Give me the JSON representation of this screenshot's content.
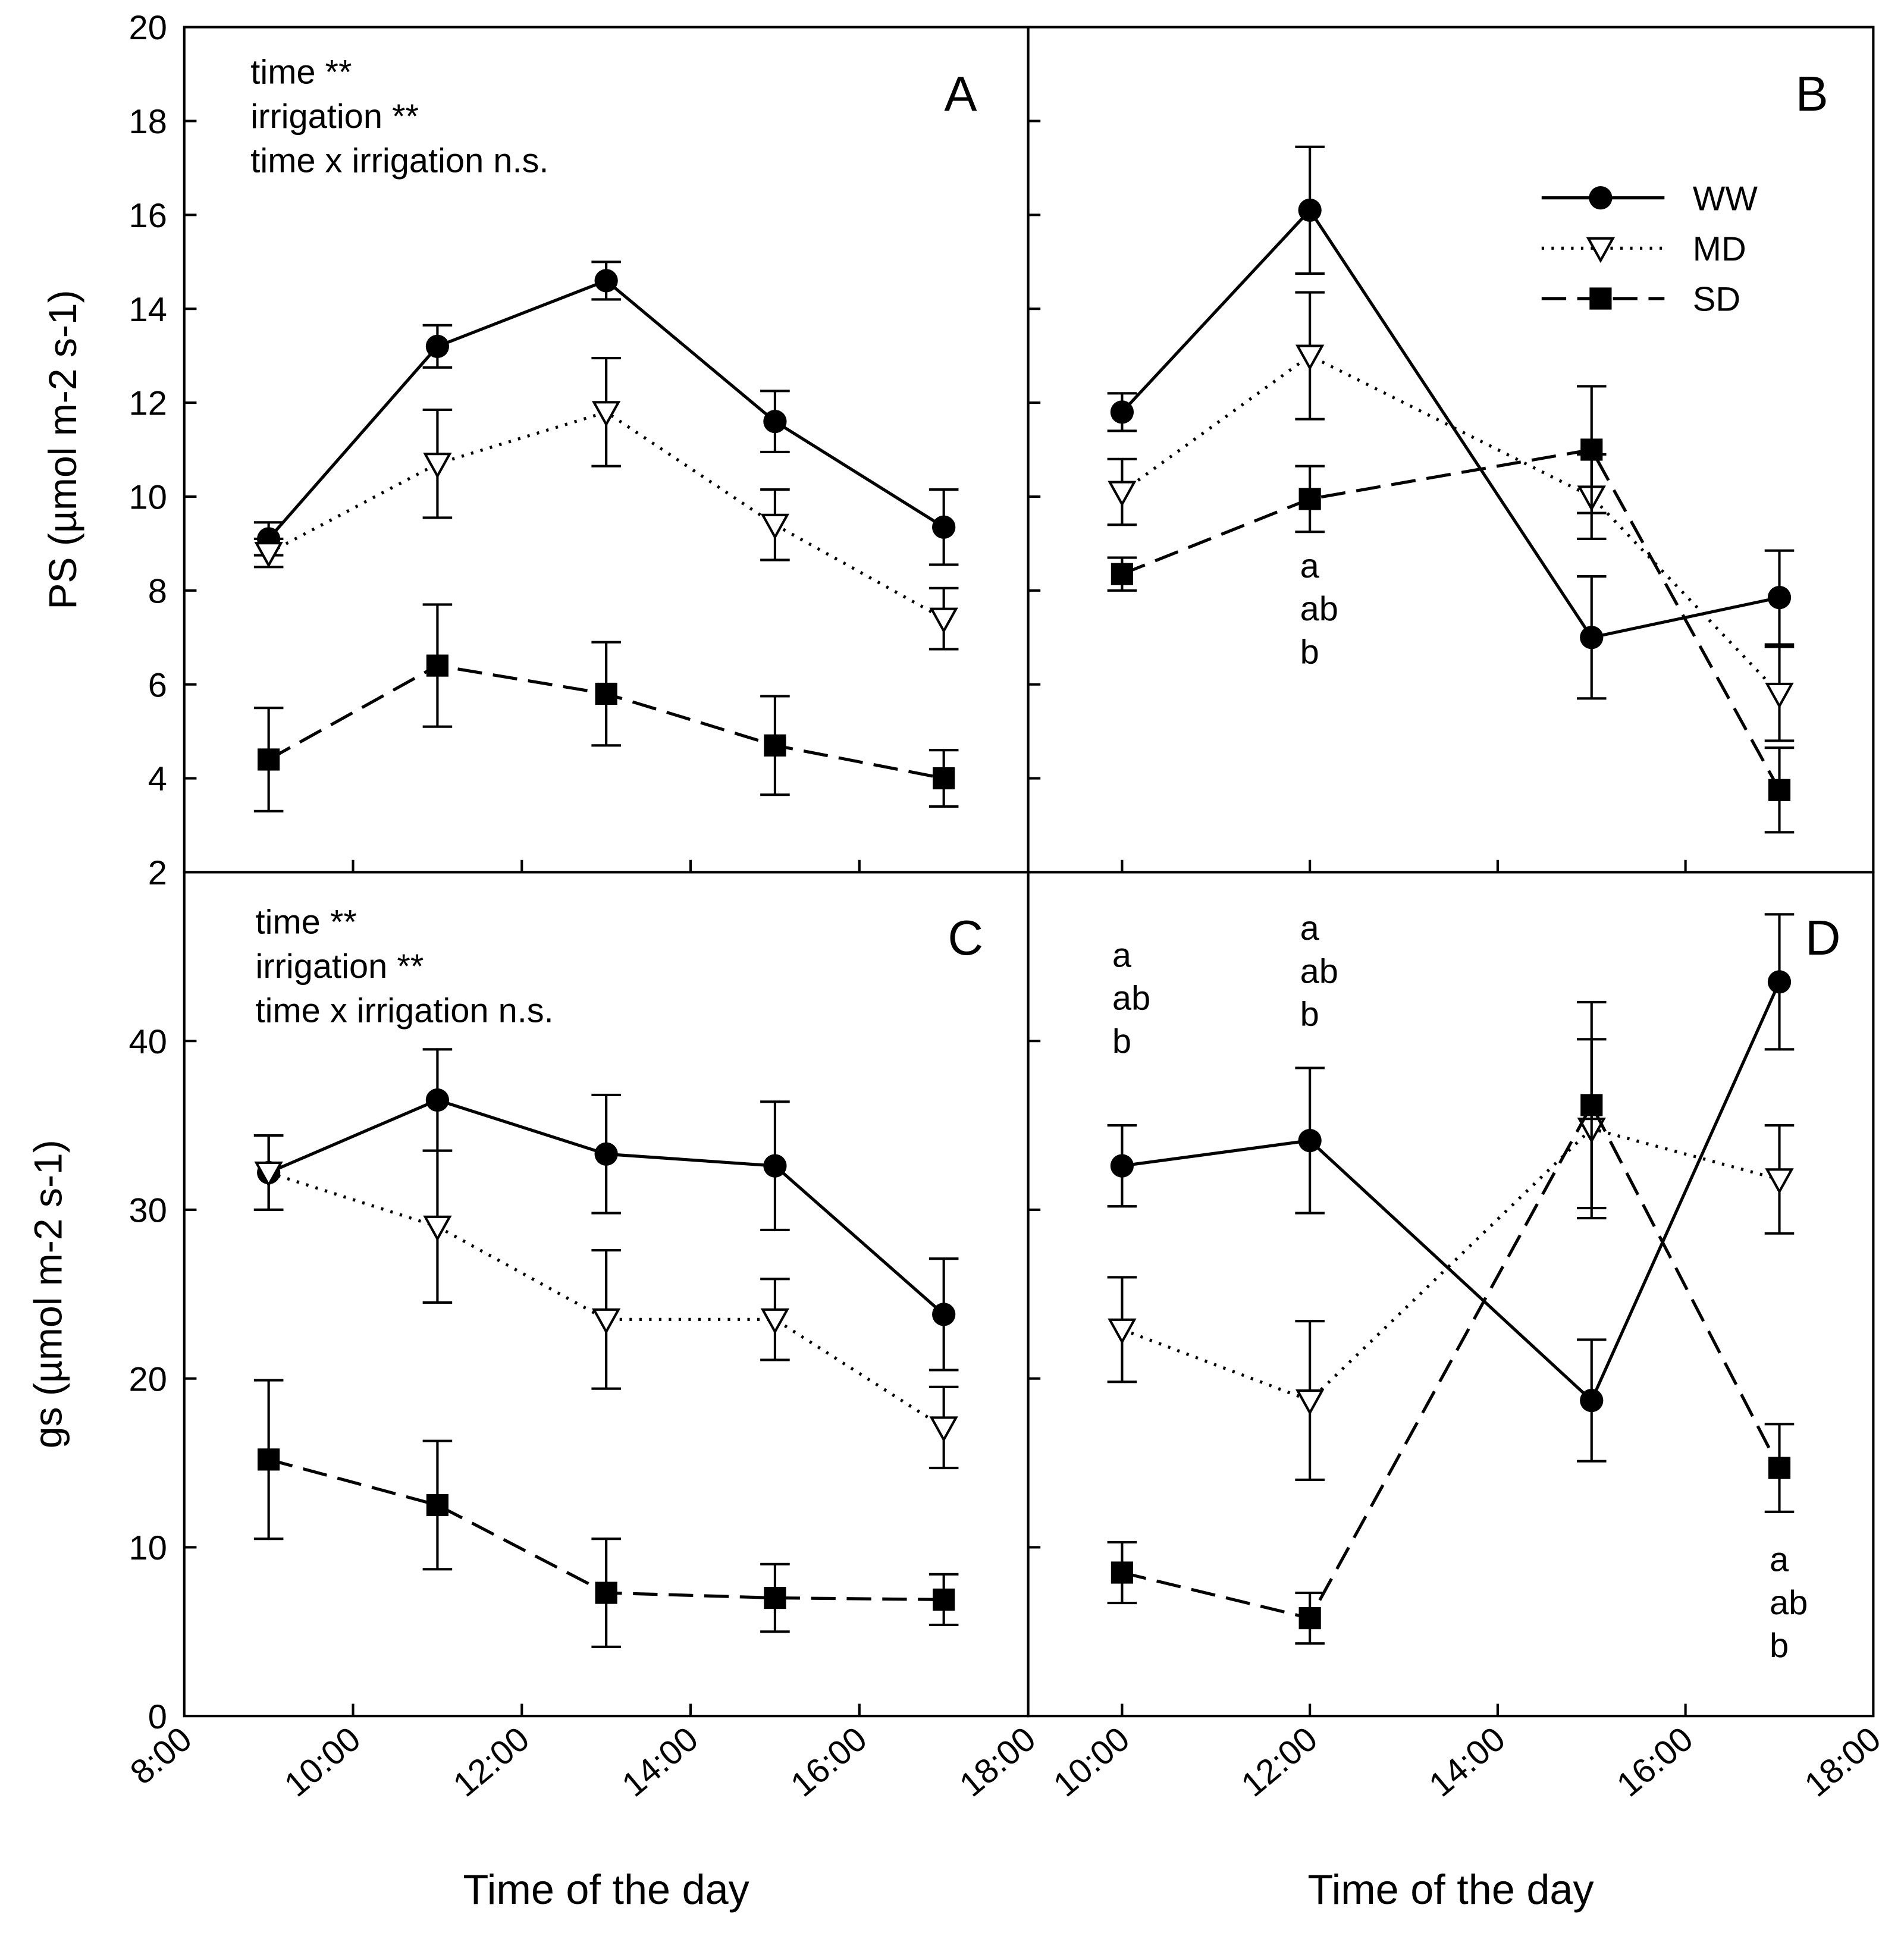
{
  "chart_data": [
    {
      "type": "line",
      "panel": "A",
      "ylabel": "PS (µmol m-2 s-1)",
      "ylim": [
        2,
        20
      ],
      "yticks": [
        2,
        4,
        6,
        8,
        10,
        12,
        14,
        16,
        18,
        20
      ],
      "xlim": [
        8,
        18
      ],
      "x": [
        9,
        11,
        13,
        15,
        17
      ],
      "stats": [
        "time **",
        "irrigation **",
        "time x irrigation n.s."
      ],
      "series": [
        {
          "name": "WW",
          "values": [
            9.1,
            13.2,
            14.6,
            11.6,
            9.35
          ],
          "errors": [
            0.35,
            0.45,
            0.4,
            0.65,
            0.8
          ]
        },
        {
          "name": "MD",
          "values": [
            8.8,
            10.7,
            11.8,
            9.4,
            7.4
          ],
          "errors": [
            0.3,
            1.15,
            1.15,
            0.75,
            0.65
          ]
        },
        {
          "name": "SD",
          "values": [
            4.4,
            6.4,
            5.8,
            4.7,
            4.0
          ],
          "errors": [
            1.1,
            1.3,
            1.1,
            1.05,
            0.6
          ]
        }
      ],
      "annotations": []
    },
    {
      "type": "line",
      "panel": "B",
      "ylim": [
        2,
        20
      ],
      "xlim": [
        9,
        18
      ],
      "x": [
        10,
        12,
        15,
        17
      ],
      "stats": [],
      "series": [
        {
          "name": "WW",
          "values": [
            11.8,
            16.1,
            7.0,
            7.85
          ],
          "errors": [
            0.4,
            1.35,
            1.3,
            1.0
          ]
        },
        {
          "name": "MD",
          "values": [
            10.1,
            13.0,
            10.0,
            5.8
          ],
          "errors": [
            0.7,
            1.35,
            0.9,
            1.0
          ]
        },
        {
          "name": "SD",
          "values": [
            8.35,
            9.95,
            11.0,
            3.75
          ],
          "errors": [
            0.35,
            0.7,
            1.35,
            0.9
          ]
        }
      ],
      "annotations": [
        {
          "x": 12,
          "labels": [
            "a",
            "ab",
            "b"
          ]
        }
      ]
    },
    {
      "type": "line",
      "panel": "C",
      "ylabel": "gs (µmol m-2 s-1)",
      "ylim": [
        0,
        50
      ],
      "yticks": [
        0,
        10,
        20,
        30,
        40
      ],
      "xlim": [
        8,
        18
      ],
      "xticks": [
        "8:00",
        "10:00",
        "12:00",
        "14:00",
        "16:00",
        "18:00"
      ],
      "xlabel": "Time of the day",
      "x": [
        9,
        11,
        13,
        15,
        17
      ],
      "stats": [
        "time **",
        "irrigation **",
        "time x irrigation n.s."
      ],
      "series": [
        {
          "name": "WW",
          "values": [
            32.2,
            36.5,
            33.3,
            32.6,
            23.8
          ],
          "errors": [
            2.2,
            3.0,
            3.5,
            3.8,
            3.3
          ]
        },
        {
          "name": "MD",
          "values": [
            32.2,
            29.0,
            23.5,
            23.5,
            17.1
          ],
          "errors": [
            2.2,
            4.5,
            4.1,
            2.4,
            2.4
          ]
        },
        {
          "name": "SD",
          "values": [
            15.2,
            12.5,
            7.3,
            7.0,
            6.9
          ],
          "errors": [
            4.7,
            3.8,
            3.2,
            2.0,
            1.5
          ]
        }
      ],
      "annotations": []
    },
    {
      "type": "line",
      "panel": "D",
      "ylim": [
        0,
        50
      ],
      "xlim": [
        9,
        18
      ],
      "xticks": [
        "10:00",
        "12:00",
        "14:00",
        "16:00",
        "18:00"
      ],
      "xlabel": "Time of the day",
      "x": [
        10,
        12,
        15,
        17
      ],
      "stats": [],
      "series": [
        {
          "name": "WW",
          "values": [
            32.6,
            34.1,
            18.7,
            43.5
          ],
          "errors": [
            2.4,
            4.3,
            3.6,
            4.0
          ]
        },
        {
          "name": "MD",
          "values": [
            22.9,
            18.7,
            34.8,
            31.8
          ],
          "errors": [
            3.1,
            4.7,
            5.3,
            3.2
          ]
        },
        {
          "name": "SD",
          "values": [
            8.5,
            5.8,
            36.2,
            14.7
          ],
          "errors": [
            1.8,
            1.5,
            6.1,
            2.6
          ]
        }
      ],
      "annotations": [
        {
          "x": 10,
          "labels": [
            "a",
            "ab",
            "b"
          ]
        },
        {
          "x": 12,
          "labels": [
            "a",
            "ab",
            "b"
          ]
        },
        {
          "x": 17,
          "labels": [
            "a",
            "ab",
            "b"
          ]
        }
      ]
    }
  ],
  "legend": {
    "placement": "panel B top-right",
    "entries": [
      "WW",
      "MD",
      "SD"
    ]
  }
}
